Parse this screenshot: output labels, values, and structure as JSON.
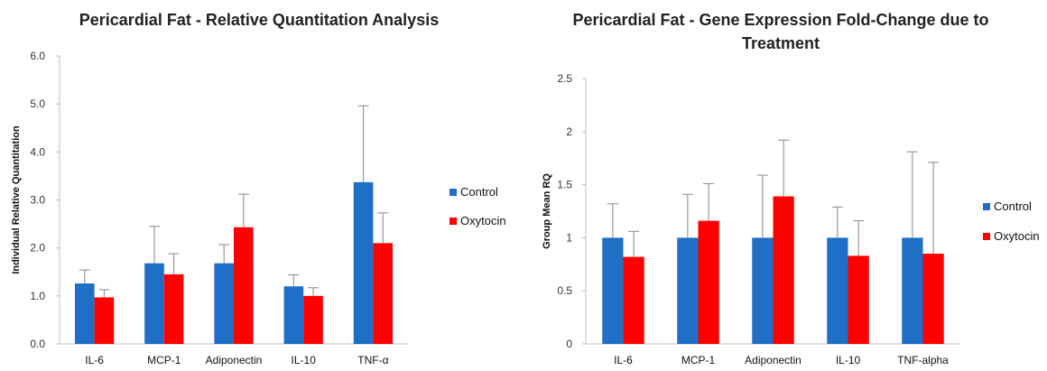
{
  "chart_data": [
    {
      "type": "bar",
      "title": "Pericardial Fat - Relative Quantitation Analysis",
      "title_lines": [
        "Pericardial Fat - Relative Quantitation Analysis"
      ],
      "xlabel": "",
      "ylabel": "Individual Relative Quantitation",
      "ylim": [
        0,
        6
      ],
      "yticks": [
        "0.0",
        "1.0",
        "2.0",
        "3.0",
        "4.0",
        "5.0",
        "6.0"
      ],
      "categories": [
        "IL-6",
        "MCP-1",
        "Adiponectin",
        "IL-10",
        "TNF-α"
      ],
      "series": [
        {
          "name": "Control",
          "color": "#1F6FC6",
          "values": [
            1.26,
            1.68,
            1.68,
            1.2,
            3.37
          ],
          "error_upper": [
            0.28,
            0.77,
            0.39,
            0.24,
            1.59
          ]
        },
        {
          "name": "Oxytocin",
          "color": "#FF0000",
          "values": [
            0.97,
            1.45,
            2.43,
            1.0,
            2.1
          ],
          "error_upper": [
            0.16,
            0.43,
            0.69,
            0.17,
            0.63
          ]
        }
      ],
      "legend": "right",
      "grid": false
    },
    {
      "type": "bar",
      "title": "Pericardial Fat - Gene Expression Fold-Change due to Treatment",
      "title_lines": [
        "Pericardial Fat - Gene Expression Fold-Change due to",
        "Treatment"
      ],
      "xlabel": "",
      "ylabel": "Group Mean RQ",
      "ylim": [
        0,
        2.5
      ],
      "yticks": [
        "0",
        "0.5",
        "1",
        "1.5",
        "2",
        "2.5"
      ],
      "categories": [
        "IL-6",
        "MCP-1",
        "Adiponectin",
        "IL-10",
        "TNF-alpha"
      ],
      "series": [
        {
          "name": "Control",
          "color": "#1F6FC6",
          "values": [
            1.0,
            1.0,
            1.0,
            1.0,
            1.0
          ],
          "error_upper": [
            0.32,
            0.41,
            0.59,
            0.29,
            0.81
          ]
        },
        {
          "name": "Oxytocin",
          "color": "#FF0000",
          "values": [
            0.82,
            1.16,
            1.39,
            0.83,
            0.85
          ],
          "error_upper": [
            0.24,
            0.35,
            0.53,
            0.33,
            0.86
          ]
        }
      ],
      "legend": "right",
      "grid": false
    }
  ]
}
